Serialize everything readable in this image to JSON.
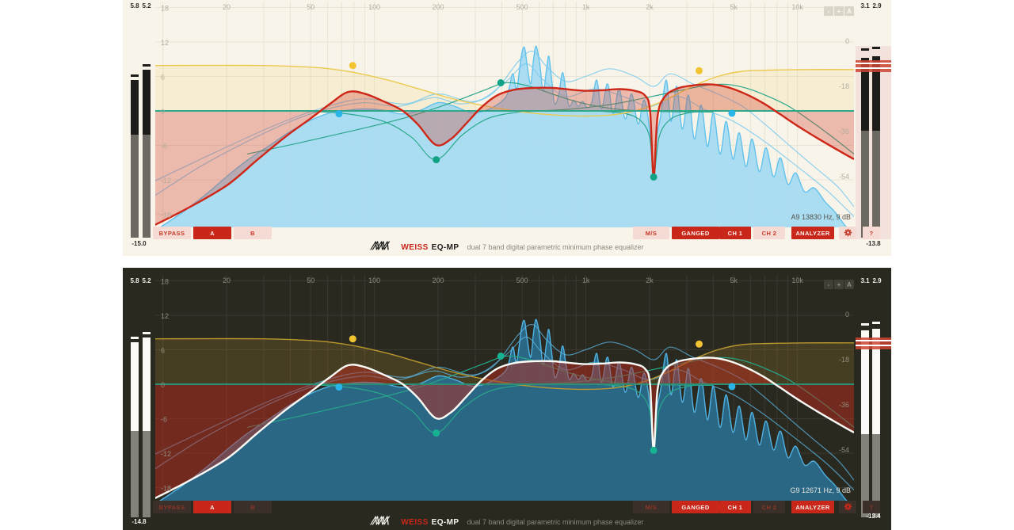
{
  "toolbar": {
    "bypass": "BYPASS",
    "preset_a": "A",
    "preset_b": "B",
    "ms": "M/S",
    "ganged": "GANGED",
    "ch1": "CH 1",
    "ch2": "CH 2",
    "analyzer": "ANALYZER",
    "help": "?"
  },
  "zoom_buttons": [
    "-",
    "+",
    "A"
  ],
  "footer": {
    "brand": "WEISS",
    "product": "EQ-MP",
    "tagline": "dual 7 band digital parametric minimum phase equalizer"
  },
  "panels": [
    {
      "theme": "light",
      "status": "A9 13830 Hz, 9 dB",
      "meters_left": {
        "labels": [
          "5.8",
          "5.2"
        ],
        "value": "-15.0"
      },
      "meters_right": {
        "labels": [
          "3.1",
          "2.9"
        ],
        "value": "-13.8"
      }
    },
    {
      "theme": "dark",
      "status": "G9 12671 Hz, 9 dB",
      "meters_left": {
        "labels": [
          "5.8",
          "5.2"
        ],
        "value": "-14.8"
      },
      "meters_right": {
        "labels": [
          "3.1",
          "2.9"
        ],
        "value": "-13.4"
      }
    }
  ],
  "themes": {
    "light": {
      "grid": "#e8e4d6",
      "axis_label": "#b4ae9f",
      "master": "#ce2718",
      "master_fill": "rgba(214,68,48,0.33)",
      "zero_line": "#2ea78a",
      "spectrum_fill": "rgba(158,216,243,0.85)",
      "spectrum_stroke": "#62c2ec",
      "envelope": "rgba(118,200,238,0.80)",
      "band": "#2aa78c",
      "shelf": "#ecc94e",
      "shelf_fill": "rgba(238,204,90,0.16)",
      "handle_yellow": "#f2c431",
      "handle_cyan": "#29b5e8",
      "handle_teal": "#12a286"
    },
    "dark": {
      "grid": "#3a3830",
      "axis_label": "#8f8c7d",
      "master": "#fafaf7",
      "master_fill": "rgba(186,44,30,0.50)",
      "zero_line": "#2b8f75",
      "spectrum_fill": "rgba(42,108,142,0.92)",
      "spectrum_stroke": "#4fb2e2",
      "envelope": "rgba(90,180,225,0.75)",
      "band": "#27a78a",
      "shelf": "#b9962e",
      "shelf_fill": "rgba(186,152,46,0.20)",
      "handle_yellow": "#f2c431",
      "handle_cyan": "#29b5e8",
      "handle_teal": "#15b392"
    }
  },
  "chart_data": {
    "type": "line",
    "x_axis": {
      "scale": "log",
      "unit": "Hz",
      "min": 9.2,
      "max": 18500,
      "ticks": [
        {
          "f": 20,
          "label": "20"
        },
        {
          "f": 50,
          "label": "50"
        },
        {
          "f": 100,
          "label": "100"
        },
        {
          "f": 200,
          "label": "200"
        },
        {
          "f": 500,
          "label": "500"
        },
        {
          "f": 1000,
          "label": "1k"
        },
        {
          "f": 2000,
          "label": "2k"
        },
        {
          "f": 5000,
          "label": "5k"
        },
        {
          "f": 10000,
          "label": "10k"
        }
      ]
    },
    "y_axis_left": {
      "unit": "dB",
      "min": -20,
      "max": 19,
      "ticks": [
        {
          "db": 18,
          "label": "18"
        },
        {
          "db": 12,
          "label": "12"
        },
        {
          "db": 6,
          "label": "6"
        },
        {
          "db": 0,
          "label": "0"
        },
        {
          "db": -6,
          "label": "-6"
        },
        {
          "db": -12,
          "label": "-12"
        },
        {
          "db": -18,
          "label": "-18"
        }
      ]
    },
    "y_axis_right": {
      "unit": "dB",
      "ticks": [
        {
          "db": 0,
          "label": "0"
        },
        {
          "db": -18,
          "label": "-18"
        },
        {
          "db": -36,
          "label": "-36"
        },
        {
          "db": -54,
          "label": "-54"
        }
      ]
    },
    "series": {
      "master": [
        [
          9,
          -20
        ],
        [
          13,
          -17
        ],
        [
          20,
          -13
        ],
        [
          28,
          -8.5
        ],
        [
          38,
          -4.5
        ],
        [
          50,
          -1.3
        ],
        [
          62,
          1.3
        ],
        [
          75,
          3.3
        ],
        [
          90,
          3.0
        ],
        [
          110,
          1.7
        ],
        [
          135,
          0.1
        ],
        [
          160,
          -2.3
        ],
        [
          195,
          -5.9
        ],
        [
          230,
          -4.9
        ],
        [
          270,
          -2.3
        ],
        [
          320,
          0.6
        ],
        [
          380,
          2.7
        ],
        [
          460,
          3.7
        ],
        [
          560,
          4.0
        ],
        [
          700,
          4.0
        ],
        [
          850,
          3.7
        ],
        [
          1000,
          3.5
        ],
        [
          1200,
          3.6
        ],
        [
          1450,
          3.8
        ],
        [
          1700,
          3.5
        ],
        [
          1900,
          2.7
        ],
        [
          2010,
          0
        ],
        [
          2090,
          -11.5
        ],
        [
          2180,
          -1
        ],
        [
          2350,
          2.4
        ],
        [
          2700,
          3.9
        ],
        [
          3300,
          4.5
        ],
        [
          4000,
          4.6
        ],
        [
          4800,
          4.0
        ],
        [
          5800,
          2.8
        ],
        [
          7000,
          1.2
        ],
        [
          8300,
          -0.6
        ],
        [
          10000,
          -2.6
        ],
        [
          12500,
          -4.8
        ],
        [
          15500,
          -6.8
        ],
        [
          18500,
          -8.4
        ]
      ],
      "shelf": [
        [
          9,
          7.9
        ],
        [
          30,
          7.9
        ],
        [
          55,
          7.5
        ],
        [
          80,
          6.7
        ],
        [
          115,
          5.4
        ],
        [
          160,
          3.9
        ],
        [
          230,
          2.2
        ],
        [
          330,
          0.9
        ],
        [
          480,
          -0.1
        ],
        [
          700,
          -0.7
        ],
        [
          1000,
          -0.9
        ],
        [
          1400,
          -0.6
        ],
        [
          1900,
          0.5
        ],
        [
          2500,
          2.3
        ],
        [
          3200,
          4.3
        ],
        [
          4200,
          6.0
        ],
        [
          5500,
          6.9
        ],
        [
          7500,
          7.1
        ],
        [
          11000,
          7.2
        ],
        [
          18500,
          7.2
        ]
      ],
      "bands": [
        [
          [
            40,
            0
          ],
          [
            70,
            -0.4
          ],
          [
            110,
            -1.8
          ],
          [
            150,
            -4.6
          ],
          [
            195,
            -8.5
          ],
          [
            260,
            -4.2
          ],
          [
            340,
            -1.4
          ],
          [
            460,
            -0.3
          ],
          [
            650,
            0
          ]
        ],
        [
          [
            25,
            -7.5
          ],
          [
            45,
            -5.5
          ],
          [
            80,
            -3.4
          ],
          [
            140,
            -1.2
          ],
          [
            230,
            1.4
          ],
          [
            330,
            3.6
          ],
          [
            420,
            4.9
          ],
          [
            540,
            4.3
          ],
          [
            700,
            2.9
          ],
          [
            950,
            1.4
          ],
          [
            1400,
            0.3
          ],
          [
            2200,
            -0.1
          ],
          [
            4000,
            -0.2
          ]
        ],
        [
          [
            600,
            0
          ],
          [
            900,
            0.4
          ],
          [
            1400,
            1.3
          ],
          [
            2100,
            2.6
          ],
          [
            2900,
            3.7
          ],
          [
            3800,
            4.5
          ],
          [
            4700,
            4.6
          ],
          [
            5800,
            3.9
          ],
          [
            7200,
            2.6
          ],
          [
            9000,
            0.9
          ],
          [
            11000,
            -1.2
          ],
          [
            14000,
            -4
          ],
          [
            18500,
            -7.5
          ]
        ],
        [
          [
            1100,
            0
          ],
          [
            1500,
            -0.4
          ],
          [
            1800,
            -1.6
          ],
          [
            2000,
            -4.5
          ],
          [
            2090,
            -11.5
          ],
          [
            2220,
            -4.5
          ],
          [
            2500,
            -1.5
          ],
          [
            3000,
            -0.4
          ],
          [
            3800,
            0
          ]
        ]
      ],
      "spectrum": [
        [
          9,
          -76
        ],
        [
          12,
          -69
        ],
        [
          16,
          -61
        ],
        [
          20,
          -54
        ],
        [
          25,
          -47.5
        ],
        [
          32,
          -41.5
        ],
        [
          40,
          -36
        ],
        [
          50,
          -31.5
        ],
        [
          62,
          -28.5
        ],
        [
          75,
          -27.5
        ],
        [
          90,
          -27
        ],
        [
          110,
          -27.5
        ],
        [
          135,
          -29
        ],
        [
          165,
          -27.5
        ],
        [
          200,
          -24.5
        ],
        [
          240,
          -26
        ],
        [
          290,
          -28.5
        ],
        [
          350,
          -27
        ],
        [
          420,
          -22
        ],
        [
          450,
          -13
        ],
        [
          470,
          -19
        ],
        [
          495,
          -6
        ],
        [
          512,
          -2.5
        ],
        [
          528,
          -10
        ],
        [
          548,
          -17
        ],
        [
          566,
          -7
        ],
        [
          582,
          -2
        ],
        [
          605,
          -9
        ],
        [
          628,
          -20
        ],
        [
          652,
          -11
        ],
        [
          668,
          -6
        ],
        [
          688,
          -15
        ],
        [
          712,
          -25
        ],
        [
          745,
          -21
        ],
        [
          775,
          -12.5
        ],
        [
          805,
          -20
        ],
        [
          835,
          -26
        ],
        [
          875,
          -23.5
        ],
        [
          920,
          -26
        ],
        [
          965,
          -24
        ],
        [
          1015,
          -26.5
        ],
        [
          1065,
          -24.5
        ],
        [
          1125,
          -15.5
        ],
        [
          1185,
          -27
        ],
        [
          1265,
          -17
        ],
        [
          1345,
          -29
        ],
        [
          1435,
          -19
        ],
        [
          1535,
          -31
        ],
        [
          1645,
          -21
        ],
        [
          1765,
          -33
        ],
        [
          1875,
          -23.5
        ],
        [
          1955,
          -29
        ],
        [
          2025,
          -40
        ],
        [
          2085,
          -52
        ],
        [
          2150,
          -39
        ],
        [
          2255,
          -30
        ],
        [
          2400,
          -15.5
        ],
        [
          2525,
          -32
        ],
        [
          2685,
          -18
        ],
        [
          2855,
          -35
        ],
        [
          3055,
          -21.5
        ],
        [
          3255,
          -39
        ],
        [
          3505,
          -25.5
        ],
        [
          3755,
          -42
        ],
        [
          4005,
          -28.5
        ],
        [
          4305,
          -45
        ],
        [
          4605,
          -32
        ],
        [
          4955,
          -47
        ],
        [
          5305,
          -36.5
        ],
        [
          5705,
          -50
        ],
        [
          6105,
          -39
        ],
        [
          6605,
          -52
        ],
        [
          7105,
          -42.5
        ],
        [
          7705,
          -54
        ],
        [
          8305,
          -46.5
        ],
        [
          9005,
          -57
        ],
        [
          9805,
          -52.5
        ],
        [
          10805,
          -60
        ],
        [
          12005,
          -58.5
        ],
        [
          13505,
          -64
        ],
        [
          15005,
          -68
        ],
        [
          17005,
          -74
        ],
        [
          18500,
          -80
        ]
      ],
      "envelopes": [
        [
          [
            9,
            -62
          ],
          [
            15,
            -50
          ],
          [
            25,
            -40
          ],
          [
            40,
            -32
          ],
          [
            60,
            -27
          ],
          [
            90,
            -24.5
          ],
          [
            130,
            -26
          ],
          [
            190,
            -22.5
          ],
          [
            260,
            -25
          ],
          [
            360,
            -21
          ],
          [
            480,
            -8
          ],
          [
            560,
            -4
          ],
          [
            650,
            -10
          ],
          [
            800,
            -16
          ],
          [
            1000,
            -14
          ],
          [
            1300,
            -11
          ],
          [
            1700,
            -14
          ],
          [
            2100,
            -18
          ],
          [
            2500,
            -13
          ],
          [
            3200,
            -17
          ],
          [
            4200,
            -21
          ],
          [
            5500,
            -26
          ],
          [
            7000,
            -33
          ],
          [
            9000,
            -41
          ],
          [
            12000,
            -50
          ],
          [
            15500,
            -58
          ],
          [
            18500,
            -66
          ]
        ],
        [
          [
            9,
            -56
          ],
          [
            18,
            -44
          ],
          [
            35,
            -33
          ],
          [
            60,
            -26
          ],
          [
            90,
            -23
          ],
          [
            140,
            -25
          ],
          [
            200,
            -21
          ],
          [
            300,
            -24
          ],
          [
            420,
            -16
          ],
          [
            520,
            -9
          ],
          [
            620,
            -15
          ],
          [
            800,
            -22
          ],
          [
            1100,
            -19
          ],
          [
            1500,
            -22
          ],
          [
            2000,
            -26
          ],
          [
            2700,
            -22
          ],
          [
            3600,
            -27
          ],
          [
            5000,
            -32
          ],
          [
            7000,
            -40
          ],
          [
            10000,
            -50
          ],
          [
            14000,
            -60
          ],
          [
            18500,
            -70
          ]
        ]
      ],
      "handles": [
        {
          "f": 79,
          "db": 7.9,
          "c": "yellow"
        },
        {
          "f": 68,
          "db": -0.5,
          "c": "cyan"
        },
        {
          "f": 196,
          "db": -8.5,
          "c": "teal"
        },
        {
          "f": 396,
          "db": 4.9,
          "c": "teal"
        },
        {
          "f": 2090,
          "db": -11.5,
          "c": "teal"
        },
        {
          "f": 3430,
          "db": 7.0,
          "c": "yellow"
        },
        {
          "f": 4900,
          "db": -0.4,
          "c": "cyan"
        }
      ]
    }
  }
}
